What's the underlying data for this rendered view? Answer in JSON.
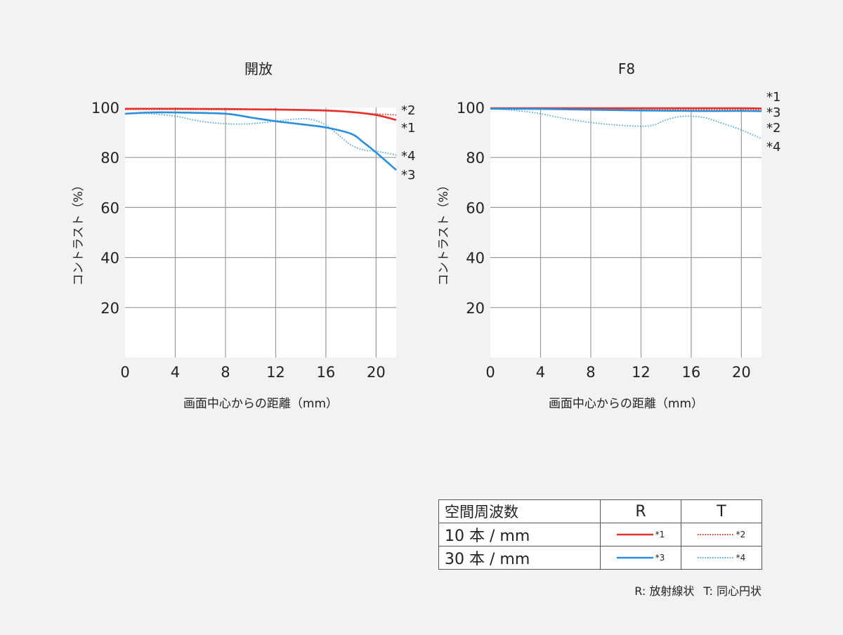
{
  "colors": {
    "r_line": "#e8302a",
    "t_line": "#e8302a",
    "blue_line": "#2b8fde",
    "blue_dotted": "#4aa6e8",
    "grid": "#999999",
    "plot_bg": "#ffffff"
  },
  "chart_data": [
    {
      "type": "line",
      "title": "開放",
      "xlabel": "画面中心からの距離（mm）",
      "ylabel": "コントラスト（%）",
      "xlim": [
        0,
        21.6
      ],
      "ylim": [
        0,
        100
      ],
      "x_ticks": [
        "0",
        "4",
        "8",
        "12",
        "16",
        "20"
      ],
      "y_ticks": [
        "20",
        "40",
        "60",
        "80",
        "100"
      ],
      "grid": true,
      "series": [
        {
          "name": "*1",
          "style": "solid",
          "color": "red",
          "x": [
            0,
            4,
            8,
            12,
            16,
            18,
            20,
            21.6
          ],
          "y": [
            99.5,
            99.5,
            99.4,
            99.2,
            98.8,
            98.2,
            97,
            95
          ]
        },
        {
          "name": "*2",
          "style": "dotted",
          "color": "red",
          "x": [
            0,
            4,
            8,
            12,
            16,
            18,
            20,
            21.6
          ],
          "y": [
            99.2,
            99.2,
            99.1,
            99.0,
            98.6,
            98.1,
            97.4,
            97
          ]
        },
        {
          "name": "*3",
          "style": "solid",
          "color": "blue",
          "x": [
            0,
            2,
            4,
            8,
            10,
            12,
            14,
            16,
            18,
            19,
            20,
            21.6
          ],
          "y": [
            97.5,
            98,
            98,
            97.5,
            96,
            94.5,
            93.3,
            92,
            89.5,
            86,
            82,
            75
          ]
        },
        {
          "name": "*4",
          "style": "dotted",
          "color": "blue",
          "x": [
            0,
            2,
            4,
            6,
            8,
            10,
            12,
            14,
            15,
            16,
            17,
            18,
            19,
            20,
            21.6
          ],
          "y": [
            97.5,
            97.5,
            96.5,
            94.5,
            93.5,
            93.5,
            94.5,
            95.5,
            95,
            93,
            89,
            85,
            83,
            82.5,
            81
          ]
        }
      ],
      "end_labels": [
        "*2",
        "*1",
        "*4",
        "*3"
      ]
    },
    {
      "type": "line",
      "title": "F8",
      "xlabel": "画面中心からの距離（mm）",
      "ylabel": "コントラスト（%）",
      "xlim": [
        0,
        21.6
      ],
      "ylim": [
        0,
        100
      ],
      "x_ticks": [
        "0",
        "4",
        "8",
        "12",
        "16",
        "20"
      ],
      "y_ticks": [
        "20",
        "40",
        "60",
        "80",
        "100"
      ],
      "grid": true,
      "series": [
        {
          "name": "*1",
          "style": "solid",
          "color": "red",
          "x": [
            0,
            4,
            8,
            12,
            16,
            20,
            21.6
          ],
          "y": [
            99.7,
            99.7,
            99.7,
            99.7,
            99.7,
            99.7,
            99.6
          ]
        },
        {
          "name": "*2",
          "style": "dotted",
          "color": "red",
          "x": [
            0,
            4,
            8,
            12,
            16,
            20,
            21.6
          ],
          "y": [
            99.5,
            99.5,
            99.4,
            99.3,
            99.2,
            99.1,
            99.0
          ]
        },
        {
          "name": "*3",
          "style": "solid",
          "color": "blue",
          "x": [
            0,
            4,
            8,
            12,
            16,
            20,
            21.6
          ],
          "y": [
            99.5,
            99.4,
            99.1,
            98.8,
            98.6,
            98.6,
            98.5
          ]
        },
        {
          "name": "*4",
          "style": "dotted",
          "color": "blue",
          "x": [
            0,
            2,
            4,
            6,
            8,
            10,
            12,
            13,
            14,
            15,
            16,
            17,
            18,
            20,
            21.6
          ],
          "y": [
            99.5,
            98.8,
            97.5,
            95.5,
            94,
            93,
            92.5,
            93,
            95,
            96.3,
            96.5,
            96,
            94.5,
            91,
            87.5
          ]
        }
      ],
      "end_labels": [
        "*1",
        "*3",
        "*2",
        "*4"
      ]
    }
  ],
  "legend": {
    "header_label": "空間周波数",
    "col_r": "R",
    "col_t": "T",
    "rows": [
      {
        "label": "10 本 / mm",
        "r_mark": "*1",
        "t_mark": "*2"
      },
      {
        "label": "30 本 / mm",
        "r_mark": "*3",
        "t_mark": "*4"
      }
    ],
    "note_r": "R: 放射線状",
    "note_t": "T: 同心円状"
  }
}
